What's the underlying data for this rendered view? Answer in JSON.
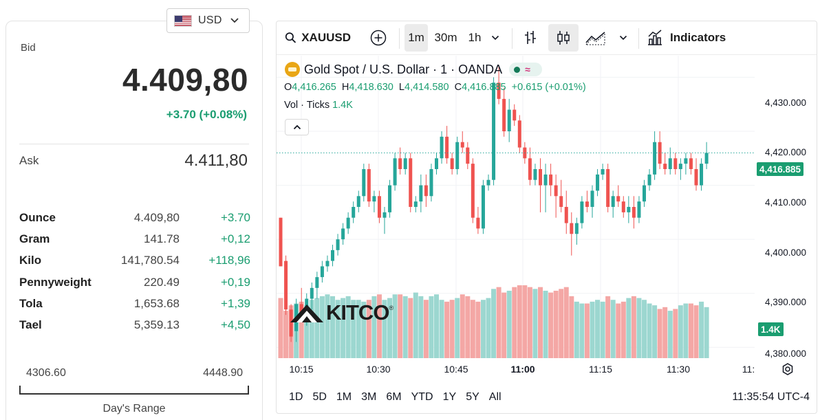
{
  "currency": {
    "code": "USD",
    "flag_icon": "us-flag-icon",
    "dropdown_icon": "chevron-down-icon"
  },
  "quote": {
    "bid_label": "Bid",
    "bid": "4.409,80",
    "change": "+3.70 (+0.08%)",
    "ask_label": "Ask",
    "ask": "4.411,80",
    "up_color": "#1a9d70"
  },
  "units": [
    {
      "name": "Ounce",
      "price": "4.409,80",
      "change": "+3.70"
    },
    {
      "name": "Gram",
      "price": "141.78",
      "change": "+0,12"
    },
    {
      "name": "Kilo",
      "price": "141,780.54",
      "change": "+118,96"
    },
    {
      "name": "Pennyweight",
      "price": "220.49",
      "change": "+0,19"
    },
    {
      "name": "Tola",
      "price": "1,653.68",
      "change": "+1,39"
    },
    {
      "name": "Tael",
      "price": "5,359.13",
      "change": "+4,50"
    }
  ],
  "days_range": {
    "low": "4306.60",
    "high": "4448.90",
    "label": "Day's Range"
  },
  "chart": {
    "toolbar": {
      "symbol": "XAUUSD",
      "intervals": [
        "1m",
        "30m",
        "1h"
      ],
      "active_interval": "1m",
      "indicators_label": "Indicators"
    },
    "legend": {
      "title": "Gold Spot / U.S. Dollar · 1 · OANDA",
      "o_label": "O",
      "open": "4,416.265",
      "h_label": "H",
      "high": "4,418.630",
      "l_label": "L",
      "low": "4,414.580",
      "c_label": "C",
      "close": "4,416.885",
      "change": "+0.615 (+0.01%)",
      "vol_label": "Vol · Ticks",
      "vol_value": "1.4K"
    },
    "watermark": "KITCO",
    "watermark_reg": "®",
    "last_price_tag": "4,416.885",
    "volume_tag": "1.4K",
    "time_range_buttons": [
      "1D",
      "5D",
      "1M",
      "3M",
      "6M",
      "YTD",
      "1Y",
      "5Y",
      "All"
    ],
    "clock": "11:35:54 UTC-4",
    "colors": {
      "up": "#26a69a",
      "down": "#ef5350",
      "up_vol": "#9cd7d0",
      "down_vol": "#f4a7a5",
      "last_tag": "#1a9d70"
    }
  },
  "chart_data": {
    "type": "candlestick",
    "price_axis": [
      "4,430.000",
      "4,420.000",
      "4,410.000",
      "4,400.000",
      "4,390.000",
      "4,380.000"
    ],
    "time_axis": [
      "10:15",
      "10:30",
      "10:45",
      "11:00",
      "11:15",
      "11:30",
      "11:"
    ],
    "ylim": [
      4378,
      4434
    ],
    "grid": true,
    "series": [
      {
        "name": "Gold Spot / U.S. Dollar",
        "ohlc": [
          [
            4404,
            4404,
            4395,
            4395
          ],
          [
            4396,
            4397,
            4386,
            4387
          ],
          [
            4387,
            4388,
            4381,
            4382
          ],
          [
            4383,
            4389,
            4381,
            4388
          ],
          [
            4388,
            4391,
            4385,
            4386
          ],
          [
            4386,
            4390,
            4384,
            4389
          ],
          [
            4389,
            4392,
            4387,
            4391
          ],
          [
            4391,
            4394,
            4389,
            4393
          ],
          [
            4393,
            4396,
            4392,
            4395
          ],
          [
            4395,
            4397,
            4394,
            4396
          ],
          [
            4396,
            4399,
            4395,
            4398
          ],
          [
            4398,
            4401,
            4397,
            4400
          ],
          [
            4400,
            4403,
            4399,
            4402
          ],
          [
            4402,
            4405,
            4401,
            4404
          ],
          [
            4404,
            4407,
            4403,
            4406
          ],
          [
            4406,
            4409,
            4405,
            4408
          ],
          [
            4408,
            4414,
            4407,
            4413
          ],
          [
            4413,
            4414,
            4406,
            4407
          ],
          [
            4407,
            4409,
            4405,
            4408
          ],
          [
            4408,
            4409,
            4403,
            4404
          ],
          [
            4404,
            4406,
            4401,
            4405
          ],
          [
            4405,
            4411,
            4404,
            4410
          ],
          [
            4410,
            4416,
            4409,
            4415
          ],
          [
            4415,
            4417,
            4412,
            4413
          ],
          [
            4413,
            4416,
            4412,
            4415
          ],
          [
            4415,
            4416,
            4405,
            4406
          ],
          [
            4406,
            4408,
            4405,
            4407
          ],
          [
            4407,
            4412,
            4405,
            4410
          ],
          [
            4410,
            4412,
            4406,
            4408
          ],
          [
            4408,
            4414,
            4407,
            4413
          ],
          [
            4413,
            4416,
            4412,
            4415
          ],
          [
            4415,
            4420,
            4414,
            4419
          ],
          [
            4419,
            4421,
            4414,
            4415
          ],
          [
            4415,
            4416,
            4412,
            4413
          ],
          [
            4413,
            4419,
            4412,
            4418
          ],
          [
            4418,
            4420,
            4416,
            4417
          ],
          [
            4417,
            4418,
            4413,
            4414
          ],
          [
            4414,
            4415,
            4403,
            4404
          ],
          [
            4404,
            4406,
            4401,
            4402
          ],
          [
            4402,
            4411,
            4401,
            4410
          ],
          [
            4410,
            4412,
            4409,
            4411
          ],
          [
            4411,
            4430,
            4410,
            4429
          ],
          [
            4429,
            4432,
            4425,
            4426
          ],
          [
            4426,
            4428,
            4419,
            4420
          ],
          [
            4420,
            4426,
            4418,
            4424
          ],
          [
            4424,
            4425,
            4421,
            4422
          ],
          [
            4422,
            4423,
            4416,
            4417
          ],
          [
            4417,
            4418,
            4414,
            4415
          ],
          [
            4415,
            4417,
            4410,
            4411
          ],
          [
            4411,
            4414,
            4410,
            4413
          ],
          [
            4413,
            4415,
            4405,
            4410
          ],
          [
            4410,
            4414,
            4405,
            4412
          ],
          [
            4412,
            4414,
            4408,
            4410
          ],
          [
            4410,
            4412,
            4404,
            4408
          ],
          [
            4408,
            4411,
            4405,
            4406
          ],
          [
            4406,
            4409,
            4401,
            4403
          ],
          [
            4403,
            4405,
            4397,
            4401
          ],
          [
            4401,
            4404,
            4399,
            4403
          ],
          [
            4403,
            4408,
            4402,
            4407
          ],
          [
            4407,
            4409,
            4405,
            4406
          ],
          [
            4406,
            4410,
            4404,
            4409
          ],
          [
            4409,
            4413,
            4408,
            4412
          ],
          [
            4412,
            4414,
            4411,
            4413
          ],
          [
            4413,
            4414,
            4405,
            4406
          ],
          [
            4406,
            4409,
            4404,
            4408
          ],
          [
            4408,
            4410,
            4406,
            4407
          ],
          [
            4407,
            4408,
            4404,
            4405
          ],
          [
            4405,
            4408,
            4403,
            4406
          ],
          [
            4406,
            4408,
            4402,
            4404
          ],
          [
            4404,
            4408,
            4403,
            4407
          ],
          [
            4407,
            4411,
            4406,
            4410
          ],
          [
            4410,
            4413,
            4409,
            4412
          ],
          [
            4412,
            4420,
            4411,
            4418
          ],
          [
            4418,
            4420,
            4413,
            4414
          ],
          [
            4414,
            4416,
            4412,
            4413
          ],
          [
            4413,
            4417,
            4412,
            4415
          ],
          [
            4415,
            4416,
            4412,
            4413
          ],
          [
            4413,
            4415,
            4411,
            4414
          ],
          [
            4414,
            4416,
            4412,
            4415
          ],
          [
            4415,
            4416,
            4412,
            4413
          ],
          [
            4413,
            4415,
            4409,
            4410
          ],
          [
            4410,
            4415,
            4409,
            4414
          ],
          [
            4414,
            4418,
            4413,
            4416
          ]
        ]
      },
      {
        "name": "Vol · Ticks",
        "values": [
          1.65,
          1.3,
          1.45,
          1.5,
          1.55,
          1.45,
          1.6,
          1.65,
          1.7,
          1.75,
          1.7,
          1.6,
          1.65,
          1.7,
          1.6,
          1.6,
          1.55,
          1.6,
          1.7,
          1.75,
          1.6,
          1.65,
          1.75,
          1.75,
          1.7,
          1.65,
          1.8,
          1.7,
          1.6,
          1.7,
          1.75,
          1.6,
          1.55,
          1.6,
          1.65,
          1.75,
          1.7,
          1.6,
          1.55,
          1.6,
          1.65,
          1.9,
          1.95,
          1.8,
          1.85,
          1.95,
          2.0,
          2.0,
          1.95,
          1.9,
          1.95,
          1.85,
          1.8,
          1.85,
          1.9,
          1.95,
          1.7,
          1.55,
          1.5,
          1.5,
          1.55,
          1.6,
          1.55,
          1.7,
          1.6,
          1.5,
          1.55,
          1.65,
          1.7,
          1.65,
          1.6,
          1.5,
          1.45,
          1.35,
          1.4,
          1.3,
          1.35,
          1.45,
          1.5,
          1.5,
          1.45,
          1.55,
          1.4
        ]
      }
    ]
  }
}
